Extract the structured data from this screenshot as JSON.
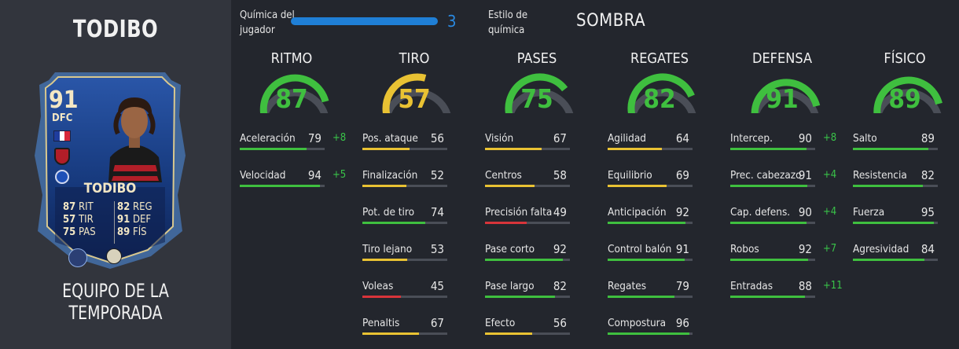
{
  "player": {
    "name": "TODIBO",
    "team_label": "EQUIPO DE LA TEMPORADA"
  },
  "card": {
    "rating": "91",
    "position": "DFC",
    "name": "TODIBO",
    "stats": [
      {
        "value": "87",
        "label": "RIT"
      },
      {
        "value": "82",
        "label": "REG"
      },
      {
        "value": "57",
        "label": "TIR"
      },
      {
        "value": "91",
        "label": "DEF"
      },
      {
        "value": "75",
        "label": "PAS"
      },
      {
        "value": "89",
        "label": "FÍS"
      }
    ]
  },
  "chemistry": {
    "label_line1": "Química del",
    "label_line2": "jugador",
    "value": "3",
    "fill": 1.0,
    "style_label_line1": "Estilo de",
    "style_label_line2": "química",
    "style_value": "SOMBRA"
  },
  "colors": {
    "green": "#3fbf3f",
    "yellow": "#e9c233",
    "red": "#d8343a",
    "accent": "#1f7fd6"
  },
  "columns": [
    {
      "title": "RITMO",
      "value": 87,
      "color": "green",
      "stats": [
        {
          "label": "Aceleración",
          "value": 79,
          "delta": "+8",
          "color": "green"
        },
        {
          "label": "Velocidad",
          "value": 94,
          "delta": "+5",
          "color": "green"
        }
      ]
    },
    {
      "title": "TIRO",
      "value": 57,
      "color": "yellow",
      "stats": [
        {
          "label": "Pos. ataque",
          "value": 56,
          "delta": "",
          "color": "yellow"
        },
        {
          "label": "Finalización",
          "value": 52,
          "delta": "",
          "color": "yellow"
        },
        {
          "label": "Pot. de tiro",
          "value": 74,
          "delta": "",
          "color": "green"
        },
        {
          "label": "Tiro lejano",
          "value": 53,
          "delta": "",
          "color": "yellow"
        },
        {
          "label": "Voleas",
          "value": 45,
          "delta": "",
          "color": "red"
        },
        {
          "label": "Penaltis",
          "value": 67,
          "delta": "",
          "color": "yellow"
        }
      ]
    },
    {
      "title": "PASES",
      "value": 75,
      "color": "green",
      "stats": [
        {
          "label": "Visión",
          "value": 67,
          "delta": "",
          "color": "yellow"
        },
        {
          "label": "Centros",
          "value": 58,
          "delta": "",
          "color": "yellow"
        },
        {
          "label": "Precisión falta",
          "value": 49,
          "delta": "",
          "color": "red"
        },
        {
          "label": "Pase corto",
          "value": 92,
          "delta": "",
          "color": "green"
        },
        {
          "label": "Pase largo",
          "value": 82,
          "delta": "",
          "color": "green"
        },
        {
          "label": "Efecto",
          "value": 56,
          "delta": "",
          "color": "yellow"
        }
      ]
    },
    {
      "title": "REGATES",
      "value": 82,
      "color": "green",
      "stats": [
        {
          "label": "Agilidad",
          "value": 64,
          "delta": "",
          "color": "yellow"
        },
        {
          "label": "Equilibrio",
          "value": 69,
          "delta": "",
          "color": "yellow"
        },
        {
          "label": "Anticipación",
          "value": 92,
          "delta": "",
          "color": "green"
        },
        {
          "label": "Control balón",
          "value": 91,
          "delta": "",
          "color": "green"
        },
        {
          "label": "Regates",
          "value": 79,
          "delta": "",
          "color": "green"
        },
        {
          "label": "Compostura",
          "value": 96,
          "delta": "",
          "color": "green"
        }
      ]
    },
    {
      "title": "DEFENSA",
      "value": 91,
      "color": "green",
      "stats": [
        {
          "label": "Intercep.",
          "value": 90,
          "delta": "+8",
          "color": "green"
        },
        {
          "label": "Prec. cabezazo",
          "value": 91,
          "delta": "+4",
          "color": "green"
        },
        {
          "label": "Cap. defens.",
          "value": 90,
          "delta": "+4",
          "color": "green"
        },
        {
          "label": "Robos",
          "value": 92,
          "delta": "+7",
          "color": "green"
        },
        {
          "label": "Entradas",
          "value": 88,
          "delta": "+11",
          "color": "green"
        }
      ]
    },
    {
      "title": "FÍSICO",
      "value": 89,
      "color": "green",
      "stats": [
        {
          "label": "Salto",
          "value": 89,
          "delta": "",
          "color": "green"
        },
        {
          "label": "Resistencia",
          "value": 82,
          "delta": "",
          "color": "green"
        },
        {
          "label": "Fuerza",
          "value": 95,
          "delta": "",
          "color": "green"
        },
        {
          "label": "Agresividad",
          "value": 84,
          "delta": "",
          "color": "green"
        }
      ]
    }
  ]
}
